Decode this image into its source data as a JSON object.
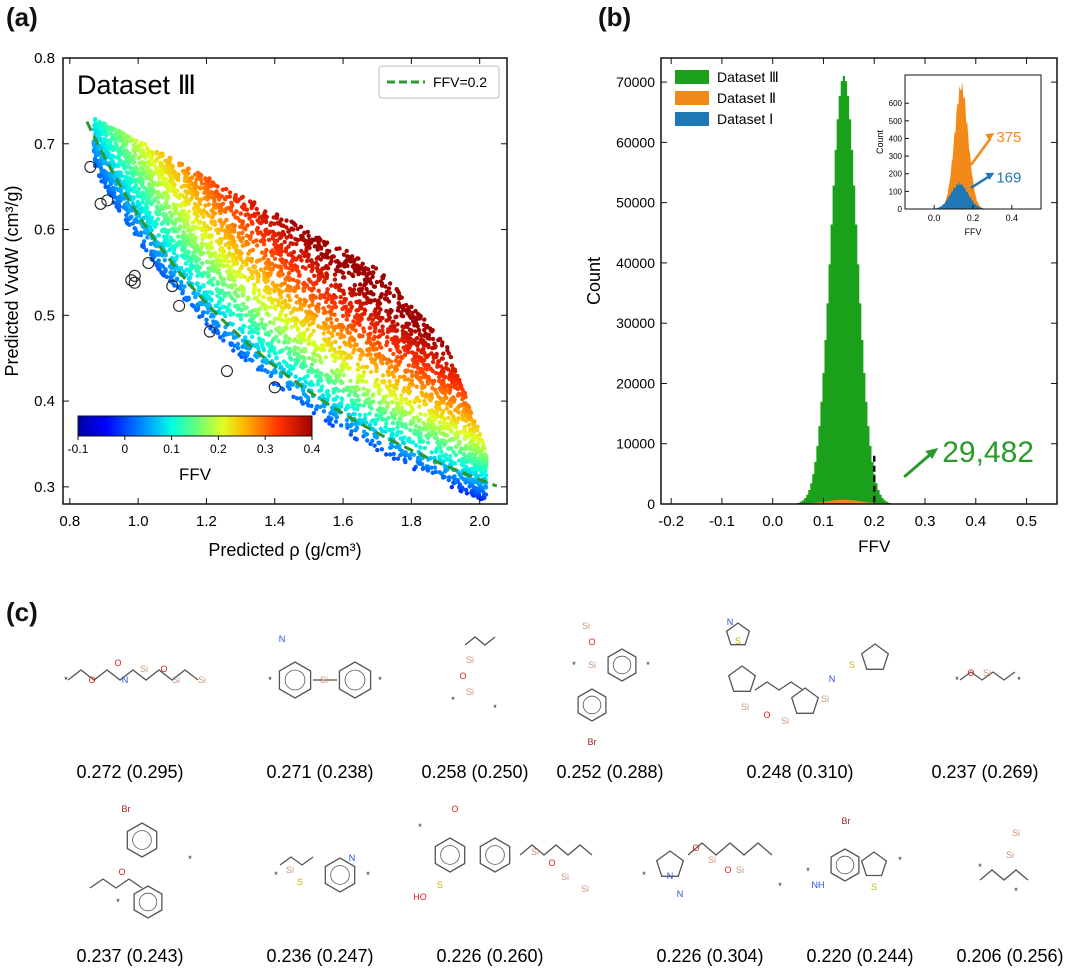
{
  "panels": {
    "a": "(a)",
    "b": "(b)",
    "c": "(c)"
  },
  "chart_data": [
    {
      "type": "scatter",
      "panel": "(a)",
      "title": "Dataset Ⅲ",
      "xlabel": "Predicted ρ (g/cm³)",
      "ylabel": "Predicted VvdW (cm³/g)",
      "xlim": [
        0.78,
        2.08
      ],
      "ylim": [
        0.28,
        0.8
      ],
      "xticks": [
        "0.8",
        "1.0",
        "1.2",
        "1.4",
        "1.6",
        "1.8",
        "2.0"
      ],
      "yticks": [
        "0.3",
        "0.4",
        "0.5",
        "0.6",
        "0.7",
        "0.8"
      ],
      "legend": {
        "position": "top-right",
        "entries": [
          "FFV=0.2"
        ]
      },
      "reference_curve": {
        "name": "FFV=0.2",
        "color": "#2a9a2a",
        "style": "dashed",
        "points": [
          [
            0.85,
            0.726
          ],
          [
            1.0,
            0.617
          ],
          [
            1.2,
            0.514
          ],
          [
            1.4,
            0.441
          ],
          [
            1.6,
            0.386
          ],
          [
            1.8,
            0.343
          ],
          [
            2.06,
            0.299
          ]
        ]
      },
      "colorbar": {
        "label": "FFV",
        "min": -0.1,
        "max": 0.4,
        "ticks": [
          "-0.1",
          "0",
          "0.1",
          "0.2",
          "0.3",
          "0.4"
        ]
      },
      "highlighted_points": [
        [
          0.86,
          0.673
        ],
        [
          0.89,
          0.63
        ],
        [
          0.91,
          0.634
        ],
        [
          1.03,
          0.561
        ],
        [
          0.99,
          0.546
        ],
        [
          0.98,
          0.541
        ],
        [
          0.99,
          0.538
        ],
        [
          1.1,
          0.534
        ],
        [
          1.12,
          0.511
        ],
        [
          1.21,
          0.481
        ],
        [
          1.26,
          0.435
        ],
        [
          1.4,
          0.416
        ]
      ]
    },
    {
      "type": "bar",
      "panel": "(b)",
      "xlabel": "FFV",
      "ylabel": "Count",
      "xlim": [
        -0.22,
        0.56
      ],
      "ylim": [
        0,
        74000
      ],
      "xticks": [
        "-0.2",
        "-0.1",
        "0.0",
        "0.1",
        "0.2",
        "0.3",
        "0.4",
        "0.5"
      ],
      "yticks": [
        "0",
        "10000",
        "20000",
        "30000",
        "40000",
        "50000",
        "60000",
        "70000"
      ],
      "legend": {
        "position": "top-left",
        "entries": [
          "Dataset Ⅲ",
          "Dataset Ⅱ",
          "Dataset Ⅰ"
        ]
      },
      "series": [
        {
          "name": "Dataset Ⅲ",
          "color": "#1aa01a",
          "mean": 0.14,
          "sd": 0.026,
          "peak": 71000
        },
        {
          "name": "Dataset Ⅱ",
          "color": "#f28a1a",
          "mean": 0.14,
          "sd": 0.035,
          "peak": 700
        },
        {
          "name": "Dataset Ⅰ",
          "color": "#1f77b4",
          "mean": 0.13,
          "sd": 0.04,
          "peak": 150
        }
      ],
      "threshold": 0.2,
      "annotation": {
        "text": "29,482",
        "color": "#2a9a2a"
      },
      "inset": {
        "type": "bar",
        "xlabel": "FFV",
        "ylabel": "Count",
        "xlim": [
          -0.15,
          0.55
        ],
        "ylim": [
          0,
          760
        ],
        "xticks": [
          "0.0",
          "0.2",
          "0.4"
        ],
        "yticks": [
          "0",
          "100",
          "200",
          "300",
          "400",
          "500",
          "600"
        ],
        "annotations": [
          {
            "text": "375",
            "color": "#f28a1a"
          },
          {
            "text": "169",
            "color": "#1f77b4"
          }
        ]
      }
    }
  ],
  "molecules": [
    "0.272 (0.295)",
    "0.271 (0.238)",
    "0.258 (0.250)",
    "0.252 (0.288)",
    "0.248 (0.310)",
    "0.237 (0.269)",
    "0.237 (0.243)",
    "0.236 (0.247)",
    "0.226 (0.260)",
    "0.226 (0.304)",
    "0.220 (0.244)",
    "0.206 (0.256)"
  ],
  "colors": {
    "axis": "#111111",
    "ring_gray": "#555555",
    "oxygen": "#e02020",
    "nitrogen": "#2050e0",
    "silicon": "#c8967a",
    "sulfur": "#c8b400",
    "bromine": "#a02020"
  }
}
